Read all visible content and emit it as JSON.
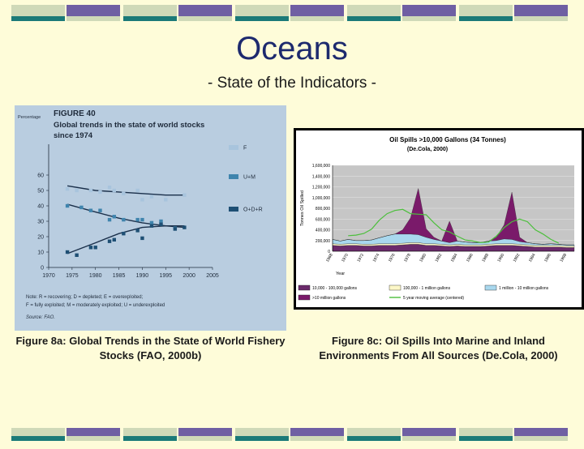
{
  "slide": {
    "title": "Oceans",
    "subtitle": "- State of the Indicators -"
  },
  "colors": {
    "background": "#fefcd9",
    "deco_light": "#cfd9b8",
    "deco_purple": "#6f5fa3",
    "deco_teal": "#1b7a78",
    "fish_panel": "#b9cde0",
    "oil_plot_bg": "#c6c6c6"
  },
  "captions": {
    "fish": "Figure 8a: Global Trends in the State of World Fishery Stocks (FAO, 2000b)",
    "oil": "Figure 8c: Oil Spills Into Marine and Inland Environments From All Sources (De.Cola, 2000)"
  },
  "fish_panel_text": {
    "ylabel_top": "Percentage",
    "figure_num": "FIGURE 40",
    "title_line1": "Global trends in the state of world stocks",
    "title_line2": "since 1974",
    "note_line1": "Note: R = recovering; D = depleted; E = overexploited;",
    "note_line2": "F = fully exploited; M = moderately exploited; U = underexploited",
    "source": "Source: FAO."
  },
  "oil_panel_text": {
    "title_line1": "Oil Spills >10,000 Gallons (34 Tonnes)",
    "title_line2": "(De.Cola, 2000)"
  },
  "chart_data": [
    {
      "type": "scatter",
      "title": "Global trends in the state of world stocks since 1974",
      "ylabel": "Percentage",
      "xlabel": "",
      "xlim": [
        1970,
        2005
      ],
      "ylim": [
        0,
        80
      ],
      "x_ticks": [
        "1970",
        "1975",
        "1980",
        "1985",
        "1990",
        "1995",
        "2000",
        "2005"
      ],
      "y_ticks": [
        "0",
        "10",
        "20",
        "30",
        "40",
        "50",
        "60"
      ],
      "legend_position": "right",
      "series": [
        {
          "name": "F",
          "color": "#a8c4dd",
          "points": [
            [
              1974,
              51
            ],
            [
              1976,
              50
            ],
            [
              1979,
              50
            ],
            [
              1981,
              49
            ],
            [
              1983,
              52
            ],
            [
              1984,
              50
            ],
            [
              1986,
              48
            ],
            [
              1989,
              50
            ],
            [
              1990,
              44
            ],
            [
              1992,
              46
            ],
            [
              1995,
              44
            ],
            [
              1999,
              47
            ]
          ],
          "trend": [
            [
              1974,
              53
            ],
            [
              1980,
              50
            ],
            [
              1985,
              49
            ],
            [
              1990,
              48
            ],
            [
              1995,
              47
            ],
            [
              1999,
              47
            ]
          ]
        },
        {
          "name": "U+M",
          "color": "#3f84ad",
          "points": [
            [
              1974,
              40
            ],
            [
              1977,
              39
            ],
            [
              1979,
              37
            ],
            [
              1981,
              37
            ],
            [
              1983,
              31
            ],
            [
              1984,
              33
            ],
            [
              1986,
              31
            ],
            [
              1989,
              31
            ],
            [
              1990,
              31
            ],
            [
              1992,
              29
            ],
            [
              1994,
              30
            ],
            [
              1997,
              26
            ]
          ],
          "trend": [
            [
              1974,
              41
            ],
            [
              1980,
              36
            ],
            [
              1985,
              32
            ],
            [
              1990,
              29
            ],
            [
              1995,
              27
            ],
            [
              1999,
              26
            ]
          ]
        },
        {
          "name": "O+D+R",
          "color": "#1e4f74",
          "points": [
            [
              1974,
              10
            ],
            [
              1976,
              8
            ],
            [
              1979,
              13
            ],
            [
              1980,
              13
            ],
            [
              1983,
              17
            ],
            [
              1984,
              18
            ],
            [
              1986,
              22
            ],
            [
              1989,
              24
            ],
            [
              1990,
              19
            ],
            [
              1992,
              27
            ],
            [
              1994,
              28
            ],
            [
              1997,
              25
            ],
            [
              1999,
              26
            ]
          ],
          "trend": [
            [
              1974,
              9
            ],
            [
              1980,
              16
            ],
            [
              1985,
              22
            ],
            [
              1990,
              26
            ],
            [
              1995,
              27
            ],
            [
              1999,
              27
            ]
          ]
        }
      ]
    },
    {
      "type": "area",
      "title": "Oil Spills >10,000 Gallons (34 Tonnes)",
      "subtitle": "(De.Cola, 2000)",
      "ylabel": "Tonnes Oil Spilled",
      "xlabel": "Year",
      "ylim": [
        0,
        1600000
      ],
      "y_ticks": [
        "0",
        "200,000",
        "400,000",
        "600,000",
        "800,000",
        "1,000,000",
        "1,200,000",
        "1,400,000",
        "1,600,000"
      ],
      "x_ticks": [
        "1968",
        "1970",
        "1972",
        "1974",
        "1976",
        "1978",
        "1980",
        "1982",
        "1984",
        "1986",
        "1988",
        "1990",
        "1992",
        "1994",
        "1996",
        "1998"
      ],
      "x": [
        1968,
        1969,
        1970,
        1971,
        1972,
        1973,
        1974,
        1975,
        1976,
        1977,
        1978,
        1979,
        1980,
        1981,
        1982,
        1983,
        1984,
        1985,
        1986,
        1987,
        1988,
        1989,
        1990,
        1991,
        1992,
        1993,
        1994,
        1995,
        1996,
        1997,
        1998,
        1999
      ],
      "series": [
        {
          "name": "10,000 - 100,000 gallons",
          "color": "#6b2a6b",
          "values": [
            110000,
            100000,
            110000,
            110000,
            100000,
            100000,
            110000,
            110000,
            110000,
            120000,
            130000,
            130000,
            110000,
            110000,
            100000,
            90000,
            100000,
            90000,
            90000,
            90000,
            100000,
            110000,
            110000,
            110000,
            100000,
            90000,
            80000,
            80000,
            80000,
            80000,
            70000,
            70000
          ]
        },
        {
          "name": "100,000 - 1 million gallons",
          "color": "#fcf7c8",
          "values": [
            30000,
            30000,
            30000,
            30000,
            30000,
            30000,
            30000,
            30000,
            30000,
            30000,
            30000,
            30000,
            30000,
            30000,
            30000,
            30000,
            30000,
            30000,
            30000,
            30000,
            30000,
            30000,
            30000,
            30000,
            30000,
            30000,
            30000,
            30000,
            30000,
            30000,
            30000,
            30000
          ]
        },
        {
          "name": "1 million - 10 million gallons",
          "color": "#a9d8ee",
          "values": [
            80000,
            60000,
            80000,
            60000,
            70000,
            80000,
            110000,
            150000,
            180000,
            170000,
            160000,
            150000,
            120000,
            80000,
            60000,
            40000,
            60000,
            50000,
            40000,
            40000,
            60000,
            60000,
            90000,
            80000,
            50000,
            40000,
            30000,
            20000,
            30000,
            20000,
            20000,
            20000
          ]
        },
        {
          "name": ">10 million gallons",
          "color": "#7a1a6a",
          "values": [
            0,
            0,
            0,
            0,
            0,
            0,
            0,
            0,
            0,
            80000,
            300000,
            860000,
            160000,
            40000,
            0,
            400000,
            0,
            0,
            0,
            0,
            0,
            60000,
            260000,
            880000,
            80000,
            0,
            0,
            0,
            0,
            0,
            0,
            0
          ]
        },
        {
          "name": "5 year moving average (centered)",
          "color": "#4cbf3c",
          "kind": "line",
          "values": [
            null,
            null,
            290000,
            300000,
            330000,
            410000,
            580000,
            700000,
            760000,
            780000,
            700000,
            690000,
            680000,
            530000,
            400000,
            360000,
            280000,
            210000,
            190000,
            160000,
            170000,
            280000,
            440000,
            550000,
            600000,
            550000,
            400000,
            320000,
            220000,
            150000,
            null,
            null
          ]
        }
      ]
    }
  ]
}
